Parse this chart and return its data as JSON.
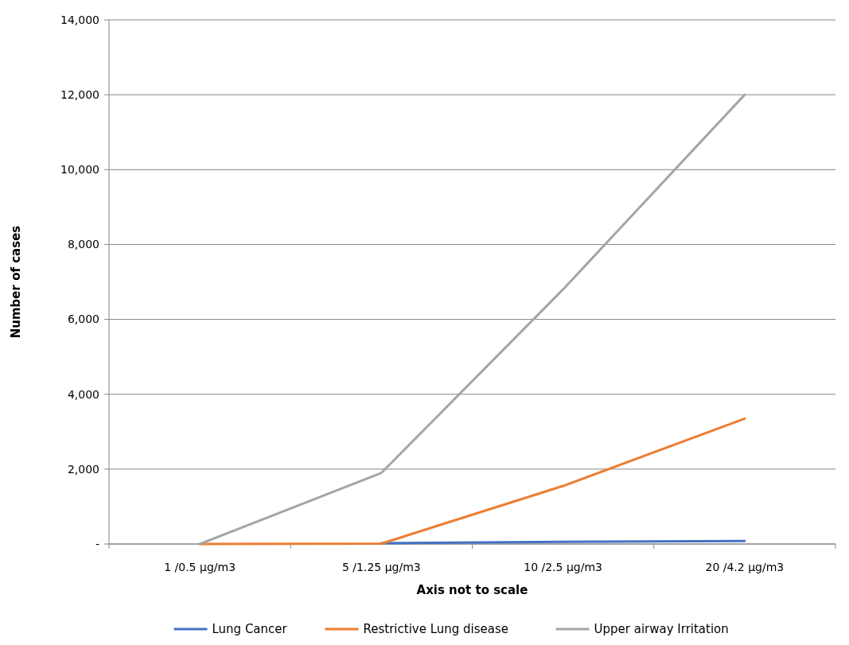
{
  "chart_data": {
    "type": "line",
    "xlabel": "Axis  not to scale",
    "ylabel": "Number of cases",
    "categories": [
      "1 /0.5 µg/m3",
      "5 /1.25 µg/m3",
      "10 /2.5 µg/m3",
      "20 /4.2 µg/m3"
    ],
    "series": [
      {
        "name": "Lung Cancer",
        "color": "#4472c4",
        "values": [
          null,
          20,
          60,
          80
        ]
      },
      {
        "name": "Restrictive Lung disease",
        "color": "#ed7d31",
        "values": [
          0,
          10,
          1550,
          3350
        ]
      },
      {
        "name": "Upper airway Irritation",
        "color": "#a5a5a5",
        "values": [
          0,
          1900,
          6800,
          12000
        ]
      }
    ],
    "ylim": [
      0,
      14000
    ],
    "yticks": [
      {
        "value": 0,
        "label": "-"
      },
      {
        "value": 2000,
        "label": "2,000"
      },
      {
        "value": 4000,
        "label": "4,000"
      },
      {
        "value": 6000,
        "label": "6,000"
      },
      {
        "value": 8000,
        "label": "8,000"
      },
      {
        "value": 10000,
        "label": "10,000"
      },
      {
        "value": 12000,
        "label": "12,000"
      },
      {
        "value": 14000,
        "label": "14,000"
      }
    ],
    "grid": "y",
    "legend": "bottom",
    "marker": "none",
    "line_style": "solid"
  }
}
